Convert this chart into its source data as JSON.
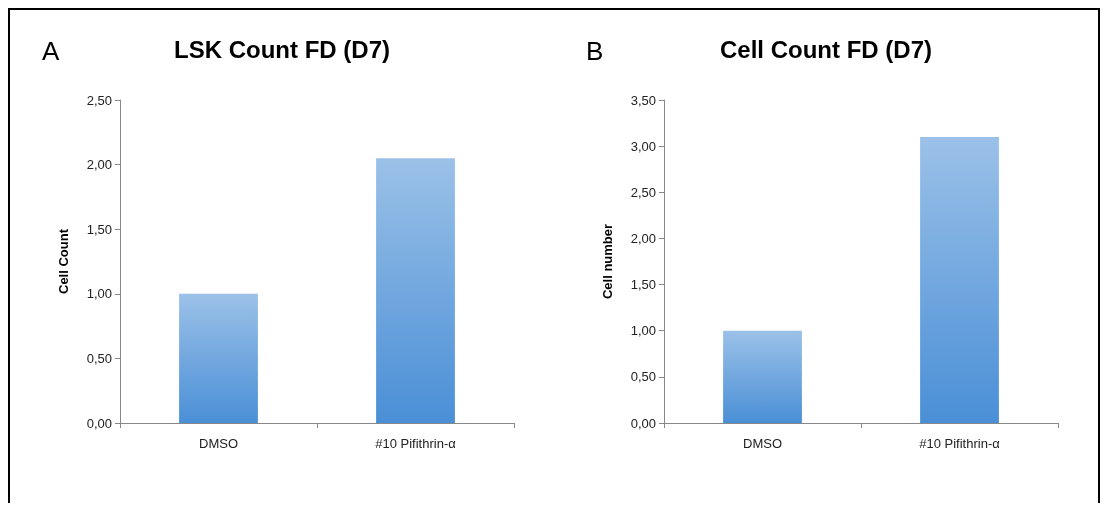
{
  "chart_data": [
    {
      "type": "bar",
      "title": "LSK Count FD (D7)",
      "ylabel": "Cell Count",
      "annotations": [
        "A"
      ],
      "categories": [
        "DMSO",
        "#10 Pifithrin-α"
      ],
      "values": [
        1.0,
        2.05
      ],
      "color": "#4a8fd6",
      "ylim": [
        0,
        2.5
      ],
      "yticks": [
        {
          "value": 0,
          "label": "0,00"
        },
        {
          "value": 0.5,
          "label": "0,50"
        },
        {
          "value": 1,
          "label": "1,00"
        },
        {
          "value": 1.5,
          "label": "1,50"
        },
        {
          "value": 2,
          "label": "2,00"
        },
        {
          "value": 2.5,
          "label": "2,50"
        }
      ],
      "grid": false
    },
    {
      "type": "bar",
      "title": "Cell Count FD (D7)",
      "ylabel": "Cell number",
      "annotations": [
        "B"
      ],
      "categories": [
        "DMSO",
        "#10 Pifithrin-α"
      ],
      "values": [
        1.0,
        3.1
      ],
      "color": "#4a8fd6",
      "ylim": [
        0,
        3.5
      ],
      "yticks": [
        {
          "value": 0,
          "label": "0,00"
        },
        {
          "value": 0.5,
          "label": "0,50"
        },
        {
          "value": 1,
          "label": "1,00"
        },
        {
          "value": 1.5,
          "label": "1,50"
        },
        {
          "value": 2,
          "label": "2,00"
        },
        {
          "value": 2.5,
          "label": "2,50"
        },
        {
          "value": 3,
          "label": "3,00"
        },
        {
          "value": 3.5,
          "label": "3,50"
        }
      ],
      "grid": false
    }
  ]
}
